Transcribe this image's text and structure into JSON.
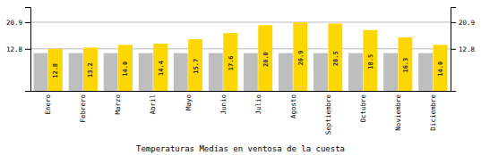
{
  "chart_data": {
    "type": "bar",
    "title": "Temperaturas Medias en ventosa de la cuesta",
    "categories": [
      "Enero",
      "Febrero",
      "Marzo",
      "Abril",
      "Mayo",
      "Junio",
      "Julio",
      "Agosto",
      "Septiembre",
      "Octubre",
      "Noviembre",
      "Diciembre"
    ],
    "series": [
      {
        "color": "#BEBEBE",
        "values": [
          11.5,
          11.5,
          11.5,
          11.5,
          11.5,
          11.5,
          11.5,
          11.5,
          11.5,
          11.5,
          11.5,
          11.5
        ]
      },
      {
        "color": "#FFD700",
        "values": [
          12.8,
          13.2,
          14.0,
          14.4,
          15.7,
          17.6,
          20.0,
          20.9,
          20.5,
          18.5,
          16.3,
          14.0
        ],
        "value_labels": [
          "12.8",
          "13.2",
          "14.0",
          "14.4",
          "15.7",
          "17.6",
          "20.0",
          "20.9",
          "20.5",
          "18.5",
          "16.3",
          "14.0"
        ],
        "data_labels": true
      }
    ],
    "ylim": [
      0,
      25.498
    ],
    "yticks": [
      12.8,
      20.9
    ],
    "grid": true
  }
}
